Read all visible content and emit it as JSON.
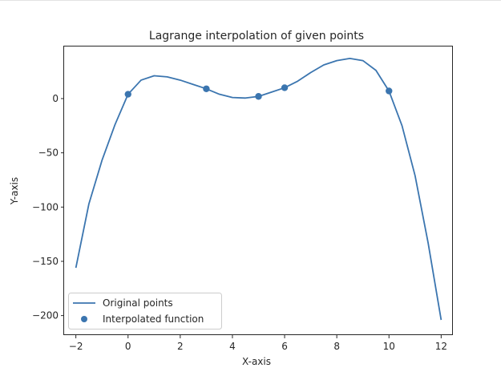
{
  "chart_data": {
    "type": "line",
    "title": "Lagrange interpolation of given points",
    "xlabel": "X-axis",
    "ylabel": "Y-axis",
    "xlim": [
      -2.45,
      12.45
    ],
    "ylim": [
      -218,
      48
    ],
    "xticks": [
      -2,
      0,
      2,
      4,
      6,
      8,
      10,
      12
    ],
    "yticks": [
      0,
      -50,
      -100,
      -150,
      -200
    ],
    "ytick_labels": [
      "0",
      "−50",
      "−100",
      "−150",
      "−200"
    ],
    "xtick_labels": [
      "−2",
      "0",
      "2",
      "4",
      "6",
      "8",
      "10",
      "12"
    ],
    "grid": false,
    "legend_position": "lower-left",
    "color": "#3b75af",
    "series": [
      {
        "name": "Original points",
        "kind": "line",
        "x": [
          -2,
          -1.5,
          -1,
          -0.5,
          0,
          0.5,
          1,
          1.5,
          2,
          2.5,
          3,
          3.5,
          4,
          4.5,
          5,
          5.5,
          6,
          6.5,
          7,
          7.5,
          8,
          8.5,
          9,
          9.5,
          10,
          10.5,
          11,
          11.5,
          12
        ],
        "y": [
          -156,
          -97,
          -57,
          -24,
          4,
          17,
          21,
          20,
          17,
          13,
          9,
          4,
          1,
          0.5,
          2,
          6,
          10,
          16,
          24,
          31,
          35,
          37,
          35,
          26,
          7,
          -25,
          -71,
          -133,
          -204
        ]
      },
      {
        "name": "Interpolated function",
        "kind": "scatter",
        "x": [
          0,
          3,
          5,
          6,
          10
        ],
        "y": [
          4,
          9,
          2,
          10,
          7
        ]
      }
    ]
  }
}
